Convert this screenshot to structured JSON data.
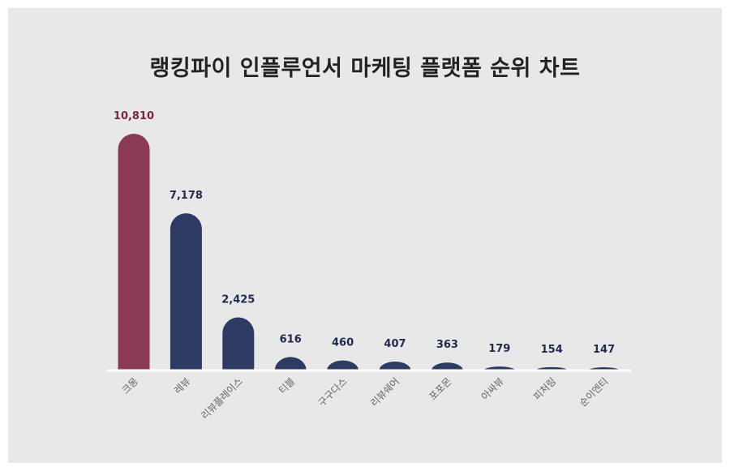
{
  "title": "랭킹파이 인플루언서 마케팅 플랫폼 순위 차트",
  "chart_data": {
    "type": "bar",
    "title": "랭킹파이 인플루언서 마케팅 플랫폼 순위 차트",
    "xlabel": "",
    "ylabel": "",
    "categories": [
      "크몽",
      "레뷰",
      "리뷰플레이스",
      "티블",
      "구구다스",
      "리뷰쉐어",
      "포포몬",
      "아싸뷰",
      "피처링",
      "순이엔티"
    ],
    "values": [
      10810,
      7178,
      2425,
      616,
      460,
      407,
      363,
      179,
      154,
      147
    ],
    "value_labels": [
      "10,810",
      "7,178",
      "2,425",
      "616",
      "460",
      "407",
      "363",
      "179",
      "154",
      "147"
    ],
    "ylim": [
      0,
      10810
    ],
    "grid": false,
    "legend": "none",
    "colors": {
      "highlight": "#8b3a55",
      "highlight_label": "#7a2540",
      "bar": "#2d3a63",
      "label": "#1f2a4d",
      "axis": "#ffffff",
      "category": "#666666"
    }
  }
}
